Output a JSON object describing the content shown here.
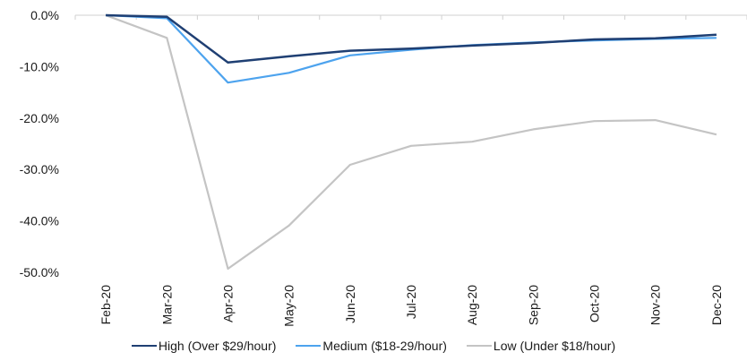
{
  "chart_data": {
    "type": "line",
    "categories": [
      "Feb-20",
      "Mar-20",
      "Apr-20",
      "May-20",
      "Jun-20",
      "Jul-20",
      "Aug-20",
      "Sep-20",
      "Oct-20",
      "Nov-20",
      "Dec-20"
    ],
    "series": [
      {
        "name": "High (Over $29/hour)",
        "color": "#1f3f73",
        "values": [
          0.0,
          -0.3,
          -9.2,
          -8.0,
          -6.9,
          -6.5,
          -5.9,
          -5.4,
          -4.7,
          -4.5,
          -3.8
        ]
      },
      {
        "name": "Medium ($18-29/hour)",
        "color": "#4da3ee",
        "values": [
          0.0,
          -0.6,
          -13.1,
          -11.2,
          -7.8,
          -6.7,
          -5.8,
          -5.3,
          -4.9,
          -4.6,
          -4.4
        ]
      },
      {
        "name": "Low (Under $18/hour)",
        "color": "#c4c4c4",
        "values": [
          0.0,
          -4.4,
          -49.3,
          -40.9,
          -29.1,
          -25.4,
          -24.6,
          -22.2,
          -20.6,
          -20.4,
          -23.2
        ]
      }
    ],
    "yticks": [
      "0.0%",
      "-10.0%",
      "-20.0%",
      "-30.0%",
      "-40.0%",
      "-50.0%"
    ],
    "ylim": [
      -50,
      0
    ],
    "title": "",
    "xlabel": "",
    "ylabel": "",
    "grid": false,
    "legend": "bottom"
  }
}
